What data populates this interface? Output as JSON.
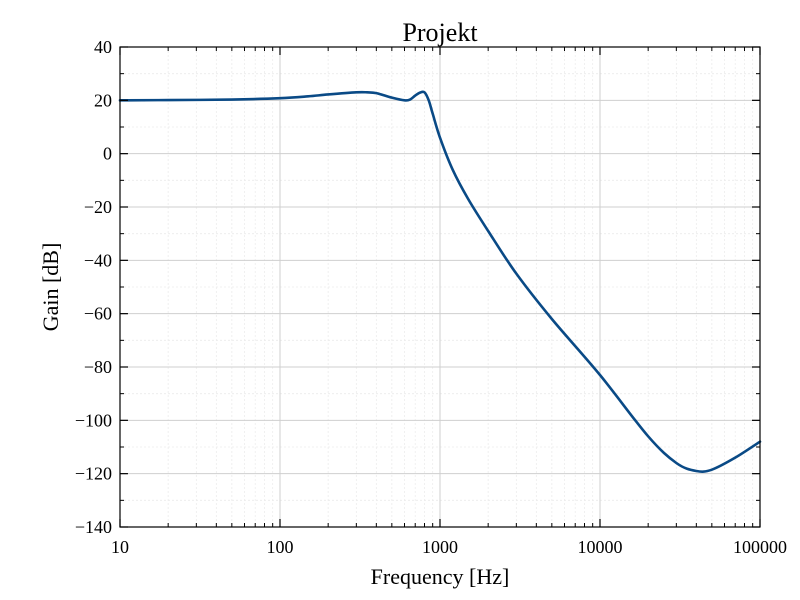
{
  "chart_data": {
    "type": "line",
    "title": "Projekt",
    "xlabel": "Frequency  [Hz]",
    "ylabel": "Gain [dB]",
    "xscale": "log",
    "xlim": [
      10,
      100000
    ],
    "ylim": [
      -140,
      40
    ],
    "x_ticks": [
      10,
      100,
      1000,
      10000,
      100000
    ],
    "x_tick_labels": [
      "10",
      "100",
      "1000",
      "10000",
      "100000"
    ],
    "y_ticks": [
      40,
      20,
      0,
      -20,
      -40,
      -60,
      -80,
      -100,
      -120,
      -140
    ],
    "y_tick_labels": [
      "40",
      "20",
      "0",
      "−20",
      "−40",
      "−60",
      "−80",
      "−100",
      "−120",
      "−140"
    ],
    "grid": true,
    "minor_grid": true,
    "line_color": "#0a4a86",
    "series": [
      {
        "x": [
          10,
          20,
          50,
          100,
          150,
          200,
          300,
          350,
          400,
          500,
          600,
          650,
          700,
          750,
          800,
          850,
          900,
          1000,
          1200,
          1500,
          2000,
          3000,
          5000,
          10000,
          20000,
          30000,
          40000,
          50000,
          70000,
          100000
        ],
        "values": [
          20,
          20.1,
          20.3,
          20.8,
          21.5,
          22.2,
          23,
          23,
          22.7,
          21,
          20,
          20.3,
          21.8,
          22.9,
          23,
          20,
          15,
          6,
          -6,
          -17,
          -29,
          -45,
          -62,
          -83,
          -106,
          -116,
          -119,
          -118.5,
          -114,
          -108
        ]
      }
    ]
  }
}
